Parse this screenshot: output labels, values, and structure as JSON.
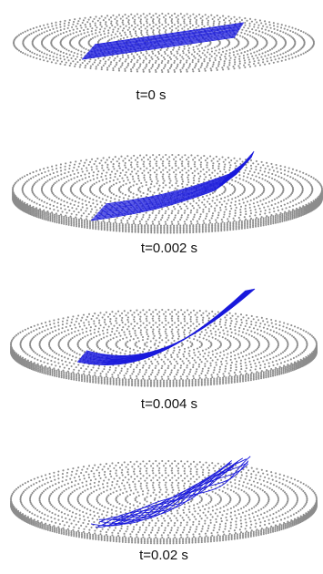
{
  "panels": [
    {
      "label": "t=0 s"
    },
    {
      "label": "t=0.002 s"
    },
    {
      "label": "t=0.004 s"
    },
    {
      "label": "t=0.02 s"
    }
  ],
  "colors": {
    "dots": "#8c8c8c",
    "fibers": "#1a1adc",
    "background": "#ffffff",
    "text": "#111111"
  }
}
